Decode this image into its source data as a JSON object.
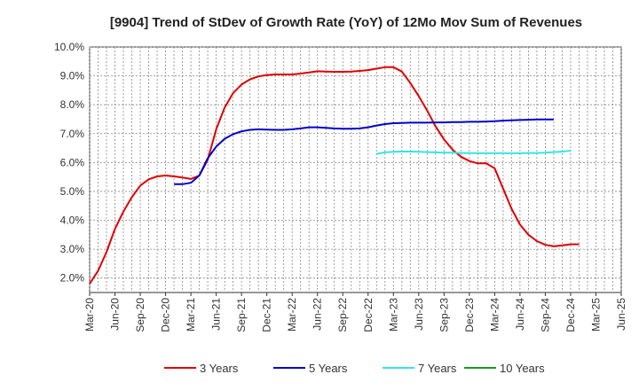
{
  "chart_data": {
    "type": "line",
    "title": "[9904]  Trend of StDev of Growth Rate (YoY) of 12Mo Mov Sum of Revenues",
    "xlabel": "",
    "ylabel": "",
    "ylim": [
      1.5,
      10.0
    ],
    "y_ticks": [
      {
        "value": 2.0,
        "label": "2.0%"
      },
      {
        "value": 3.0,
        "label": "3.0%"
      },
      {
        "value": 4.0,
        "label": "4.0%"
      },
      {
        "value": 5.0,
        "label": "5.0%"
      },
      {
        "value": 6.0,
        "label": "6.0%"
      },
      {
        "value": 7.0,
        "label": "7.0%"
      },
      {
        "value": 8.0,
        "label": "8.0%"
      },
      {
        "value": 9.0,
        "label": "9.0%"
      },
      {
        "value": 10.0,
        "label": "10.0%"
      }
    ],
    "x_range": [
      0,
      63
    ],
    "x_ticks": [
      {
        "index": 0,
        "label": "Mar-20"
      },
      {
        "index": 3,
        "label": "Jun-20"
      },
      {
        "index": 6,
        "label": "Sep-20"
      },
      {
        "index": 9,
        "label": "Dec-20"
      },
      {
        "index": 12,
        "label": "Mar-21"
      },
      {
        "index": 15,
        "label": "Jun-21"
      },
      {
        "index": 18,
        "label": "Sep-21"
      },
      {
        "index": 21,
        "label": "Dec-21"
      },
      {
        "index": 24,
        "label": "Mar-22"
      },
      {
        "index": 27,
        "label": "Jun-22"
      },
      {
        "index": 30,
        "label": "Sep-22"
      },
      {
        "index": 33,
        "label": "Dec-22"
      },
      {
        "index": 36,
        "label": "Mar-23"
      },
      {
        "index": 39,
        "label": "Jun-23"
      },
      {
        "index": 42,
        "label": "Sep-23"
      },
      {
        "index": 45,
        "label": "Dec-23"
      },
      {
        "index": 48,
        "label": "Mar-24"
      },
      {
        "index": 51,
        "label": "Jun-24"
      },
      {
        "index": 54,
        "label": "Sep-24"
      },
      {
        "index": 57,
        "label": "Dec-24"
      },
      {
        "index": 60,
        "label": "Mar-25"
      },
      {
        "index": 63,
        "label": "Jun-25"
      }
    ],
    "grid": true,
    "legend_position": "bottom",
    "series": [
      {
        "name": "3 Years",
        "color": "#e00000",
        "start_index": 0,
        "values": [
          1.8,
          2.25,
          2.9,
          3.7,
          4.3,
          4.8,
          5.2,
          5.42,
          5.52,
          5.55,
          5.52,
          5.48,
          5.43,
          5.55,
          6.1,
          7.15,
          7.9,
          8.4,
          8.7,
          8.88,
          8.98,
          9.03,
          9.05,
          9.05,
          9.05,
          9.08,
          9.12,
          9.16,
          9.15,
          9.14,
          9.14,
          9.15,
          9.17,
          9.2,
          9.25,
          9.3,
          9.3,
          9.15,
          8.75,
          8.3,
          7.8,
          7.25,
          6.8,
          6.45,
          6.2,
          6.05,
          5.97,
          5.97,
          5.8,
          5.1,
          4.4,
          3.85,
          3.5,
          3.28,
          3.15,
          3.1,
          3.13,
          3.17,
          3.17
        ],
        "index_offset": 0
      },
      {
        "name": "5 Years",
        "color": "#0000cc",
        "start_index": 10,
        "values": [
          5.25,
          5.25,
          5.3,
          5.55,
          6.15,
          6.55,
          6.82,
          6.98,
          7.08,
          7.13,
          7.15,
          7.14,
          7.13,
          7.13,
          7.15,
          7.18,
          7.22,
          7.22,
          7.2,
          7.18,
          7.17,
          7.17,
          7.18,
          7.22,
          7.28,
          7.33,
          7.36,
          7.37,
          7.38,
          7.38,
          7.38,
          7.39,
          7.39,
          7.4,
          7.4,
          7.41,
          7.41,
          7.42,
          7.43,
          7.45,
          7.46,
          7.47,
          7.48,
          7.49,
          7.49,
          7.49
        ],
        "index_offset": 0
      },
      {
        "name": "7 Years",
        "color": "#33e6e6",
        "start_index": 34,
        "values": [
          6.3,
          6.35,
          6.37,
          6.38,
          6.38,
          6.37,
          6.36,
          6.35,
          6.34,
          6.34,
          6.33,
          6.33,
          6.32,
          6.32,
          6.32,
          6.32,
          6.32,
          6.32,
          6.33,
          6.33,
          6.34,
          6.36,
          6.38,
          6.41
        ],
        "index_offset": 0
      },
      {
        "name": "10 Years",
        "color": "#1a9a1a",
        "start_index": 0,
        "values": [],
        "index_offset": 0
      }
    ]
  }
}
